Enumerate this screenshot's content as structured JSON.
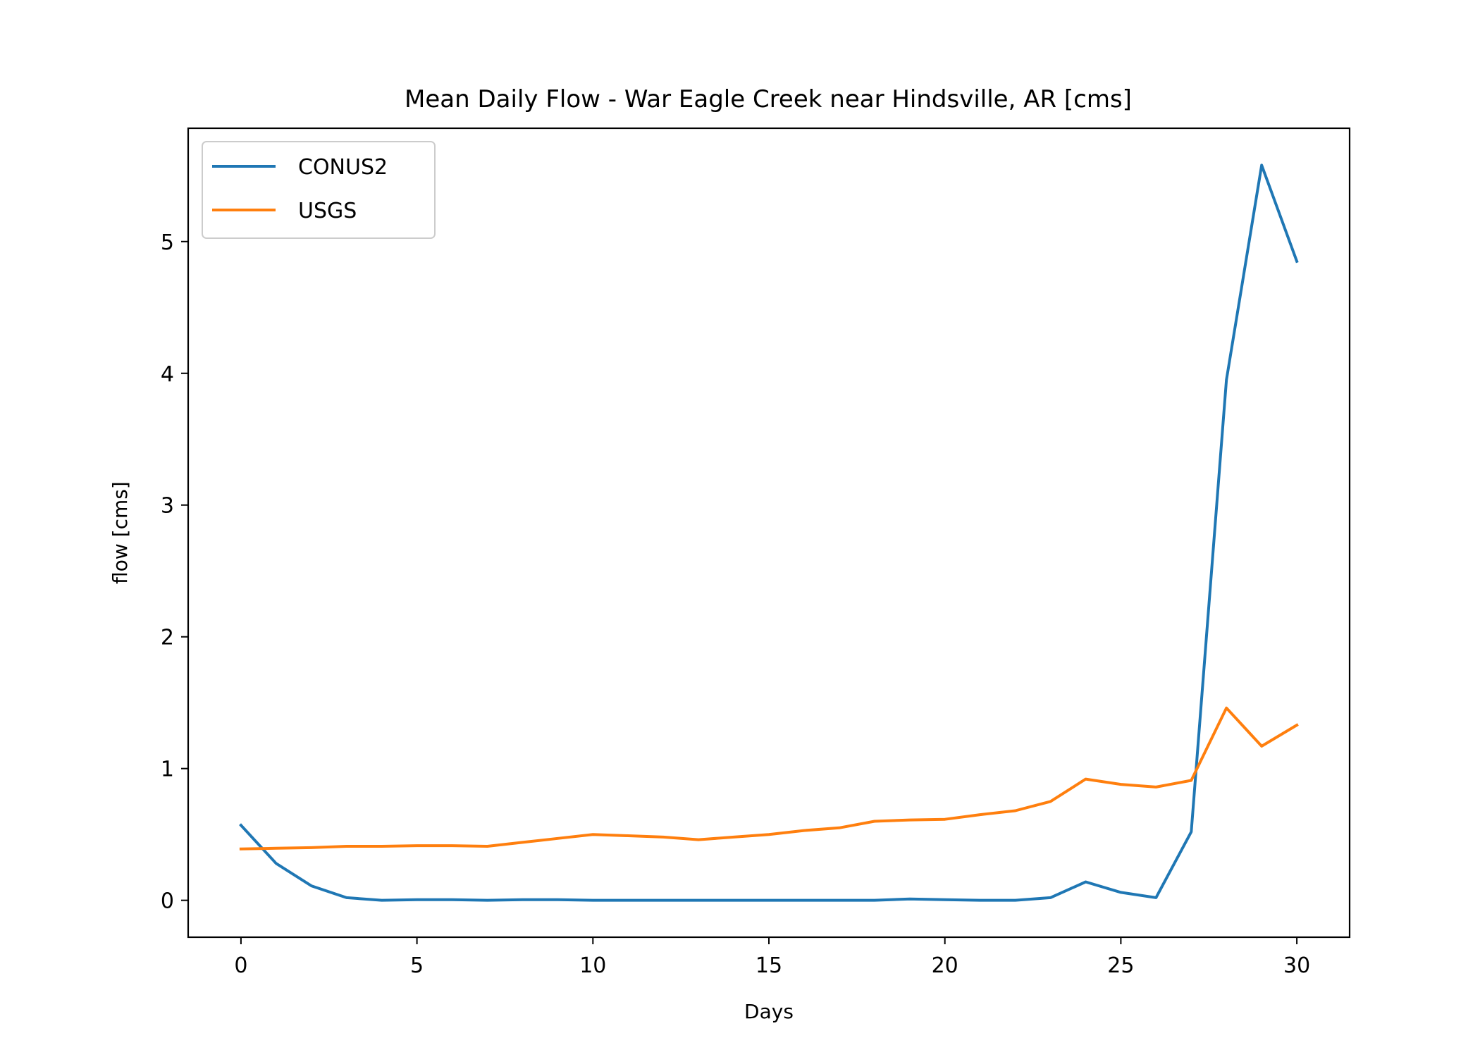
{
  "chart_data": {
    "type": "line",
    "title": "Mean Daily Flow - War Eagle Creek near Hindsville, AR [cms]",
    "xlabel": "Days",
    "ylabel": "flow [cms]",
    "xlim": [
      -1.5,
      31.5
    ],
    "ylim": [
      -0.28,
      5.86
    ],
    "xticks": [
      0,
      5,
      10,
      15,
      20,
      25,
      30
    ],
    "yticks": [
      0,
      1,
      2,
      3,
      4,
      5
    ],
    "grid": false,
    "legend_position": "top-left",
    "x": [
      0,
      1,
      2,
      3,
      4,
      5,
      6,
      7,
      8,
      9,
      10,
      11,
      12,
      13,
      14,
      15,
      16,
      17,
      18,
      19,
      20,
      21,
      22,
      23,
      24,
      25,
      26,
      27,
      28,
      29,
      30
    ],
    "series": [
      {
        "name": "CONUS2",
        "color": "#1f77b4",
        "values": [
          0.57,
          0.28,
          0.11,
          0.02,
          0.0,
          0.005,
          0.005,
          0.0,
          0.005,
          0.005,
          0.0,
          0.0,
          0.0,
          0.0,
          0.0,
          0.0,
          0.0,
          0.0,
          0.0,
          0.01,
          0.005,
          0.0,
          0.0,
          0.02,
          0.14,
          0.06,
          0.02,
          0.52,
          3.95,
          5.58,
          4.85
        ]
      },
      {
        "name": "USGS",
        "color": "#ff7f0e",
        "values": [
          0.39,
          0.395,
          0.4,
          0.41,
          0.41,
          0.415,
          0.415,
          0.41,
          0.44,
          0.47,
          0.5,
          0.49,
          0.48,
          0.46,
          0.48,
          0.5,
          0.53,
          0.55,
          0.6,
          0.61,
          0.615,
          0.65,
          0.68,
          0.75,
          0.92,
          0.88,
          0.86,
          0.91,
          1.46,
          1.17,
          1.33
        ]
      }
    ]
  }
}
